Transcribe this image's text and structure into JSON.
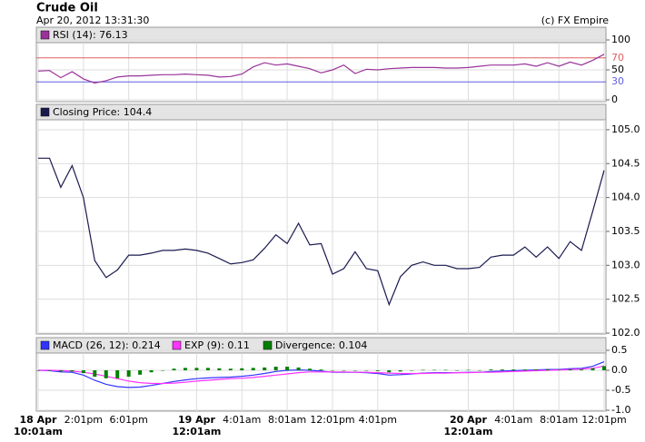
{
  "chart_data": [
    {
      "type": "line",
      "title": "Crude Oil",
      "subtitle": "Apr 20, 2012 13:31:30",
      "credit": "(c) FX Empire",
      "ylim": [
        0,
        100
      ],
      "yticks": [
        0,
        50,
        100
      ],
      "grid": true,
      "reference_lines": [
        {
          "value": 70,
          "color": "#e06060"
        },
        {
          "value": 30,
          "color": "#6060e0"
        }
      ],
      "series": [
        {
          "name": "RSI (14): 76.13",
          "color": "#993399",
          "values": [
            48,
            49,
            37,
            47,
            35,
            28,
            32,
            38,
            40,
            40,
            41,
            42,
            42,
            43,
            42,
            41,
            38,
            39,
            43,
            55,
            62,
            58,
            60,
            56,
            52,
            45,
            50,
            58,
            44,
            51,
            50,
            52,
            53,
            54,
            54,
            54,
            53,
            53,
            54,
            56,
            58,
            58,
            58,
            60,
            56,
            62,
            56,
            63,
            58,
            66,
            76.13
          ]
        }
      ]
    },
    {
      "type": "line",
      "ylim": [
        102.0,
        105.2
      ],
      "yticks": [
        {
          "value": 102.0,
          "label": "102.0"
        },
        {
          "value": 102.5,
          "label": "102.5"
        },
        {
          "value": 103.0,
          "label": "103.0"
        },
        {
          "value": 103.5,
          "label": "103.5"
        },
        {
          "value": 104.0,
          "label": "104.0"
        },
        {
          "value": 104.5,
          "label": "104.5"
        },
        {
          "value": 105.0,
          "label": "105.0"
        }
      ],
      "grid": true,
      "series": [
        {
          "name": "Closing Price: 104.4",
          "color": "#1a1a50",
          "values": [
            104.58,
            104.58,
            104.15,
            104.47,
            104.0,
            103.07,
            102.82,
            102.93,
            103.15,
            103.15,
            103.18,
            103.22,
            103.22,
            103.24,
            103.22,
            103.18,
            103.1,
            103.02,
            103.04,
            103.08,
            103.25,
            103.45,
            103.32,
            103.62,
            103.3,
            103.32,
            102.87,
            102.95,
            103.2,
            102.95,
            102.92,
            102.42,
            102.83,
            103.0,
            103.05,
            103.0,
            103.0,
            102.95,
            102.95,
            102.97,
            103.12,
            103.15,
            103.15,
            103.27,
            103.12,
            103.27,
            103.1,
            103.35,
            103.22,
            103.8,
            104.4
          ]
        }
      ]
    },
    {
      "type": "macd",
      "ylim": [
        -1.0,
        0.5
      ],
      "yticks": [
        {
          "value": -1.0,
          "label": "-1.0"
        },
        {
          "value": -0.5,
          "label": "-0.5"
        },
        {
          "value": 0.0,
          "label": "0.0"
        },
        {
          "value": 0.5,
          "label": "0.5"
        }
      ],
      "grid": true,
      "categories": [
        "18 Apr\n10:01am",
        null,
        null,
        null,
        "2:01pm",
        null,
        null,
        null,
        "6:01pm",
        null,
        null,
        null,
        null,
        null,
        "19 Apr\n12:01am",
        null,
        null,
        null,
        "4:01am",
        null,
        null,
        null,
        "8:01am",
        null,
        null,
        null,
        "12:01pm",
        null,
        null,
        null,
        "4:01pm",
        null,
        null,
        null,
        null,
        null,
        null,
        null,
        "20 Apr\n12:01am",
        null,
        null,
        null,
        "4:01am",
        null,
        null,
        null,
        "8:01am",
        null,
        null,
        null,
        "12:01pm"
      ],
      "series": [
        {
          "name": "MACD (26, 12): 0.214",
          "color": "#3333ff",
          "kind": "line",
          "values": [
            0,
            -0.01,
            -0.04,
            -0.05,
            -0.12,
            -0.25,
            -0.35,
            -0.41,
            -0.43,
            -0.42,
            -0.38,
            -0.33,
            -0.28,
            -0.24,
            -0.21,
            -0.19,
            -0.18,
            -0.17,
            -0.15,
            -0.12,
            -0.08,
            -0.03,
            0,
            0.01,
            0.0,
            -0.02,
            -0.05,
            -0.05,
            -0.05,
            -0.06,
            -0.08,
            -0.12,
            -0.11,
            -0.09,
            -0.07,
            -0.06,
            -0.06,
            -0.06,
            -0.05,
            -0.05,
            -0.03,
            -0.02,
            -0.01,
            0,
            0.01,
            0.02,
            0.02,
            0.04,
            0.05,
            0.1,
            0.214
          ]
        },
        {
          "name": "EXP (9): 0.11",
          "color": "#ff33ff",
          "kind": "line",
          "values": [
            0,
            0,
            -0.01,
            -0.02,
            -0.05,
            -0.09,
            -0.15,
            -0.21,
            -0.27,
            -0.31,
            -0.33,
            -0.33,
            -0.32,
            -0.3,
            -0.27,
            -0.25,
            -0.23,
            -0.21,
            -0.2,
            -0.18,
            -0.15,
            -0.12,
            -0.09,
            -0.06,
            -0.04,
            -0.04,
            -0.04,
            -0.04,
            -0.05,
            -0.05,
            -0.06,
            -0.07,
            -0.08,
            -0.08,
            -0.08,
            -0.07,
            -0.07,
            -0.06,
            -0.06,
            -0.05,
            -0.05,
            -0.04,
            -0.03,
            -0.02,
            -0.01,
            0,
            0.01,
            0.02,
            0.03,
            0.05,
            0.11
          ]
        },
        {
          "name": "Divergence: 0.104",
          "color": "#008000",
          "kind": "bar",
          "values": [
            0,
            -0.01,
            -0.03,
            -0.03,
            -0.07,
            -0.16,
            -0.2,
            -0.2,
            -0.16,
            -0.11,
            -0.05,
            0,
            0.04,
            0.06,
            0.06,
            0.06,
            0.05,
            0.04,
            0.05,
            0.06,
            0.07,
            0.09,
            0.09,
            0.07,
            0.04,
            0.02,
            -0.01,
            -0.01,
            0,
            -0.01,
            -0.02,
            -0.05,
            -0.03,
            -0.01,
            0.01,
            0.01,
            0.01,
            0,
            0.01,
            0,
            0.02,
            0.02,
            0.02,
            0.02,
            0.02,
            0.02,
            0.01,
            0.02,
            0.02,
            0.05,
            0.104
          ]
        }
      ]
    }
  ]
}
